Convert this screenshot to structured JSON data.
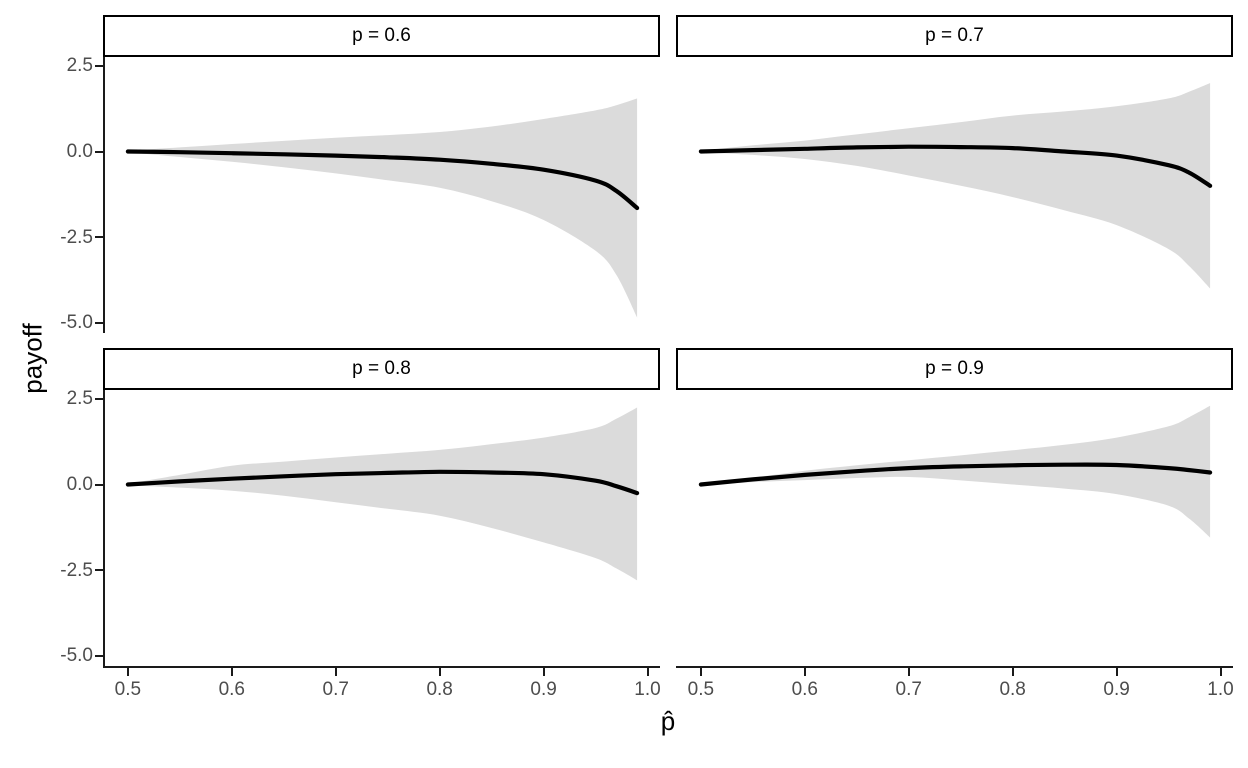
{
  "chart_data": {
    "type": "line",
    "title": "",
    "xlabel": "p̂",
    "ylabel": "payoff",
    "grid": "off",
    "legend": "none",
    "facet_layout": "2x2 facet grid",
    "x_tick_labels": [
      "0.5",
      "0.6",
      "0.7",
      "0.8",
      "0.9",
      "1.0"
    ],
    "x_tick_values": [
      0.5,
      0.6,
      0.7,
      0.8,
      0.9,
      1.0
    ],
    "y_tick_labels": [
      "2.5",
      "0.0",
      "-2.5",
      "-5.0"
    ],
    "y_tick_values": [
      2.5,
      0.0,
      -2.5,
      -5.0
    ],
    "xlim": [
      0.478,
      1.012
    ],
    "ylim": [
      -5.3,
      2.76
    ],
    "line_color": "#000000",
    "ribbon_color": "#dbdbdb",
    "axis_color": "#1a1a1a",
    "tick_label_color": "#4d4d4d",
    "x": [
      0.5,
      0.55,
      0.6,
      0.65,
      0.7,
      0.75,
      0.8,
      0.85,
      0.9,
      0.95,
      0.97,
      0.99
    ],
    "facets": [
      {
        "label": "p = 0.6",
        "mean": [
          0.0,
          -0.02,
          -0.05,
          -0.08,
          -0.12,
          -0.17,
          -0.24,
          -0.36,
          -0.53,
          -0.85,
          -1.15,
          -1.65
        ],
        "upper": [
          0.02,
          0.12,
          0.22,
          0.31,
          0.4,
          0.48,
          0.57,
          0.73,
          0.95,
          1.2,
          1.35,
          1.55
        ],
        "lower": [
          -0.02,
          -0.16,
          -0.3,
          -0.46,
          -0.64,
          -0.84,
          -1.06,
          -1.45,
          -2.0,
          -2.9,
          -3.6,
          -4.85
        ]
      },
      {
        "label": "p = 0.7",
        "mean": [
          0.0,
          0.04,
          0.08,
          0.12,
          0.14,
          0.13,
          0.1,
          0.0,
          -0.12,
          -0.4,
          -0.62,
          -1.0
        ],
        "upper": [
          0.02,
          0.18,
          0.32,
          0.5,
          0.68,
          0.86,
          1.05,
          1.17,
          1.32,
          1.55,
          1.75,
          2.0
        ],
        "lower": [
          -0.02,
          -0.1,
          -0.22,
          -0.42,
          -0.7,
          -1.0,
          -1.33,
          -1.72,
          -2.15,
          -2.85,
          -3.35,
          -4.0
        ]
      },
      {
        "label": "p = 0.8",
        "mean": [
          0.0,
          0.09,
          0.17,
          0.24,
          0.3,
          0.34,
          0.37,
          0.35,
          0.3,
          0.11,
          -0.05,
          -0.25
        ],
        "upper": [
          0.02,
          0.28,
          0.55,
          0.67,
          0.79,
          0.9,
          1.01,
          1.18,
          1.37,
          1.65,
          1.92,
          2.25
        ],
        "lower": [
          -0.02,
          -0.09,
          -0.18,
          -0.33,
          -0.52,
          -0.71,
          -0.91,
          -1.27,
          -1.69,
          -2.15,
          -2.45,
          -2.8
        ]
      },
      {
        "label": "p = 0.9",
        "mean": [
          0.0,
          0.15,
          0.28,
          0.39,
          0.48,
          0.53,
          0.56,
          0.58,
          0.57,
          0.48,
          0.42,
          0.35
        ],
        "upper": [
          0.03,
          0.2,
          0.4,
          0.56,
          0.71,
          0.85,
          1.0,
          1.16,
          1.37,
          1.7,
          1.97,
          2.3
        ],
        "lower": [
          -0.02,
          0.07,
          0.13,
          0.19,
          0.22,
          0.12,
          0.0,
          -0.12,
          -0.28,
          -0.62,
          -1.0,
          -1.55
        ]
      }
    ]
  }
}
